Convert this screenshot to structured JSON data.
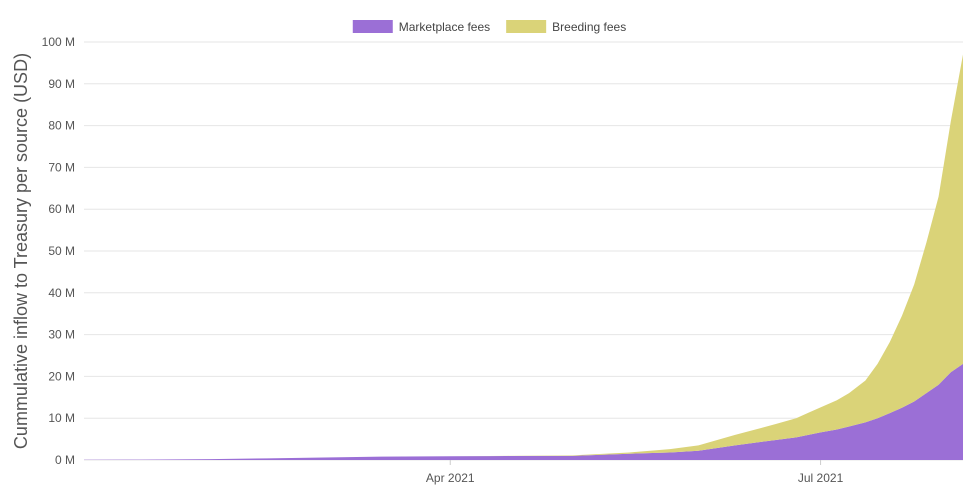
{
  "chart_data": {
    "type": "area",
    "stacked": true,
    "ylabel": "Cummulative inflow to Treasury per source (USD)",
    "xlabel": "",
    "ylim": [
      0,
      100000000
    ],
    "y_ticks": [
      0,
      10000000,
      20000000,
      30000000,
      40000000,
      50000000,
      60000000,
      70000000,
      80000000,
      90000000,
      100000000
    ],
    "y_tick_labels": [
      "0 M",
      "10 M",
      "20 M",
      "30 M",
      "40 M",
      "50 M",
      "60 M",
      "70 M",
      "80 M",
      "90 M",
      "100 M"
    ],
    "x_range": [
      "2021-01-01",
      "2021-08-05"
    ],
    "x_ticks": [
      "2021-04-01",
      "2021-07-01"
    ],
    "x_tick_labels": [
      "Apr 2021",
      "Jul 2021"
    ],
    "grid": true,
    "legend_position": "top-center",
    "x": [
      "2021-01-01",
      "2021-01-15",
      "2021-02-01",
      "2021-02-15",
      "2021-03-01",
      "2021-03-15",
      "2021-04-01",
      "2021-04-15",
      "2021-05-01",
      "2021-05-15",
      "2021-05-25",
      "2021-06-01",
      "2021-06-10",
      "2021-06-20",
      "2021-06-25",
      "2021-06-28",
      "2021-07-01",
      "2021-07-05",
      "2021-07-08",
      "2021-07-12",
      "2021-07-15",
      "2021-07-18",
      "2021-07-21",
      "2021-07-24",
      "2021-07-27",
      "2021-07-30",
      "2021-08-02",
      "2021-08-05"
    ],
    "series": [
      {
        "name": "Marketplace fees",
        "color": "#9b6fd6",
        "values": [
          0.05,
          0.1,
          0.2,
          0.4,
          0.6,
          0.8,
          0.9,
          0.95,
          1.0,
          1.5,
          1.8,
          2.2,
          3.5,
          4.8,
          5.4,
          6.0,
          6.6,
          7.3,
          8.0,
          9.0,
          10.0,
          11.2,
          12.5,
          14.0,
          16.0,
          18.0,
          21.0,
          23.0
        ]
      },
      {
        "name": "Breeding fees",
        "color": "#dad378",
        "values": [
          0,
          0,
          0,
          0,
          0,
          0,
          0,
          0.05,
          0.1,
          0.3,
          0.8,
          1.3,
          2.5,
          3.8,
          4.6,
          5.3,
          6.0,
          7.0,
          8.0,
          10.0,
          13.0,
          17.0,
          22.0,
          28.0,
          36.0,
          45.0,
          60.0,
          74.0
        ]
      }
    ]
  }
}
